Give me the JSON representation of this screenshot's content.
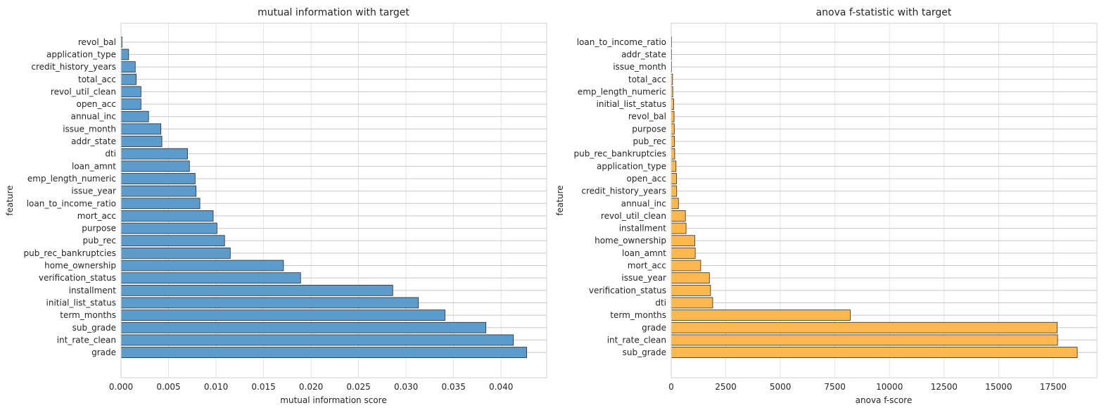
{
  "chart_data": [
    {
      "type": "bar",
      "orientation": "horizontal",
      "title": "mutual information with target",
      "xlabel": "mutual information score",
      "ylabel": "feature",
      "xlim": [
        0,
        0.0448
      ],
      "xticks": [
        "0.000",
        "0.005",
        "0.010",
        "0.015",
        "0.020",
        "0.025",
        "0.030",
        "0.035",
        "0.040"
      ],
      "grid": true,
      "bar_color": "#5b9ccd",
      "categories": [
        "grade",
        "int_rate_clean",
        "sub_grade",
        "term_months",
        "initial_list_status",
        "installment",
        "verification_status",
        "home_ownership",
        "pub_rec_bankruptcies",
        "pub_rec",
        "purpose",
        "mort_acc",
        "loan_to_income_ratio",
        "issue_year",
        "emp_length_numeric",
        "loan_amnt",
        "dti",
        "addr_state",
        "issue_month",
        "annual_inc",
        "open_acc",
        "revol_util_clean",
        "total_acc",
        "credit_history_years",
        "application_type",
        "revol_bal"
      ],
      "values": [
        0.0427,
        0.0413,
        0.0384,
        0.0341,
        0.0313,
        0.0286,
        0.0189,
        0.0171,
        0.0115,
        0.0109,
        0.0101,
        0.0097,
        0.0083,
        0.0079,
        0.0078,
        0.0072,
        0.007,
        0.0043,
        0.0042,
        0.0029,
        0.0021,
        0.0021,
        0.0016,
        0.0015,
        0.0008,
        0.0001
      ]
    },
    {
      "type": "bar",
      "orientation": "horizontal",
      "title": "anova f-statistic with target",
      "xlabel": "anova f-score",
      "ylabel": "feature",
      "xlim": [
        0,
        19500
      ],
      "xticks": [
        "0",
        "2500",
        "5000",
        "7500",
        "10000",
        "12500",
        "15000",
        "17500"
      ],
      "grid": true,
      "bar_color": "#ffb84d",
      "categories": [
        "sub_grade",
        "int_rate_clean",
        "grade",
        "term_months",
        "dti",
        "verification_status",
        "issue_year",
        "mort_acc",
        "loan_amnt",
        "home_ownership",
        "installment",
        "revol_util_clean",
        "annual_inc",
        "credit_history_years",
        "open_acc",
        "application_type",
        "pub_rec_bankruptcies",
        "pub_rec",
        "purpose",
        "revol_bal",
        "initial_list_status",
        "emp_length_numeric",
        "total_acc",
        "issue_month",
        "addr_state",
        "loan_to_income_ratio"
      ],
      "values": [
        18600,
        17700,
        17680,
        8200,
        1900,
        1800,
        1750,
        1350,
        1100,
        1080,
        680,
        650,
        330,
        250,
        240,
        220,
        160,
        150,
        140,
        130,
        110,
        70,
        60,
        15,
        10,
        5
      ]
    }
  ]
}
